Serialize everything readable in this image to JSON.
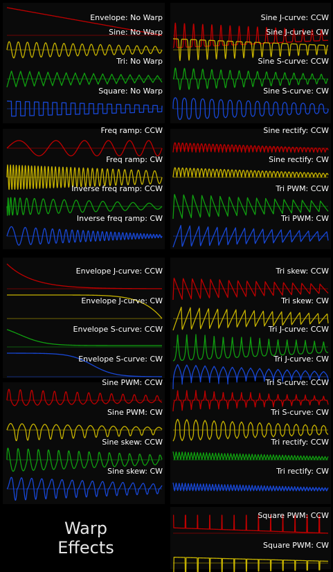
{
  "title": {
    "line1": "Warp",
    "line2": "Effects"
  },
  "colors": {
    "red": "#c00000",
    "yellow": "#c8b400",
    "green": "#10a010",
    "blue": "#1848d8"
  },
  "left_groups": [
    {
      "traces": [
        {
          "label": "Envelope: No Warp",
          "color": "red",
          "shape": "env_linear"
        },
        {
          "label": "Sine: No Warp",
          "color": "yellow",
          "shape": "sine"
        },
        {
          "label": "Tri: No Warp",
          "color": "green",
          "shape": "tri"
        },
        {
          "label": "Square: No Warp",
          "color": "blue",
          "shape": "square"
        }
      ]
    },
    {
      "traces": [
        {
          "label": "Freq ramp: CCW",
          "color": "red",
          "shape": "freq_slow"
        },
        {
          "label": "Freq ramp: CW",
          "color": "yellow",
          "shape": "freq_fast"
        },
        {
          "label": "Inverse freq ramp: CCW",
          "color": "green",
          "shape": "invfreq_ccw"
        },
        {
          "label": "Inverse freq ramp: CW",
          "color": "blue",
          "shape": "invfreq_cw"
        }
      ]
    },
    {
      "traces": [
        {
          "label": "Envelope J-curve: CCW",
          "color": "red",
          "shape": "env_j_ccw"
        },
        {
          "label": "Envelope J-curve: CW",
          "color": "yellow",
          "shape": "env_j_cw"
        },
        {
          "label": "Envelope S-curve: CCW",
          "color": "green",
          "shape": "env_s_ccw"
        },
        {
          "label": "Envelope S-curve: CW",
          "color": "blue",
          "shape": "env_s_cw"
        }
      ]
    },
    {
      "traces": [
        {
          "label": "Sine PWM: CCW",
          "color": "red",
          "shape": "sine_pwm"
        },
        {
          "label": "Sine PWM: CW",
          "color": "yellow",
          "shape": "sine_pwm_cw"
        },
        {
          "label": "Sine skew: CCW",
          "color": "green",
          "shape": "sine_skew_ccw"
        },
        {
          "label": "Sine skew: CW",
          "color": "blue",
          "shape": "sine_skew_cw"
        }
      ]
    }
  ],
  "right_groups": [
    {
      "traces": [
        {
          "label": "Sine J-curve: CCW",
          "color": "red",
          "shape": "sinej_ccw"
        },
        {
          "label": "Sine J-curve: CW",
          "color": "yellow",
          "shape": "sinej_cw"
        },
        {
          "label": "Sine S-curve: CCW",
          "color": "green",
          "shape": "sines_ccw"
        },
        {
          "label": "Sine S-curve: CW",
          "color": "blue",
          "shape": "sines_cw"
        }
      ]
    },
    {
      "traces": [
        {
          "label": "Sine rectify: CCW",
          "color": "red",
          "shape": "rect_ccw"
        },
        {
          "label": "Sine rectify: CW",
          "color": "yellow",
          "shape": "rect_cw"
        },
        {
          "label": "Tri PWM: CCW",
          "color": "green",
          "shape": "tri_pwm_ccw"
        },
        {
          "label": "Tri PWM: CW",
          "color": "blue",
          "shape": "tri_pwm_cw"
        }
      ]
    },
    {
      "traces": [
        {
          "label": "Tri skew: CCW",
          "color": "red",
          "shape": "saw_down"
        },
        {
          "label": "Tri skew: CW",
          "color": "yellow",
          "shape": "saw_up"
        },
        {
          "label": "Tri J-curve: CCW",
          "color": "green",
          "shape": "trij_ccw"
        },
        {
          "label": "Tri J-curve: CW",
          "color": "blue",
          "shape": "trij_cw"
        }
      ]
    },
    {
      "traces": [
        {
          "label": "Tri S-curve: CCW",
          "color": "red",
          "shape": "tris_ccw"
        },
        {
          "label": "Tri S-curve: CW",
          "color": "yellow",
          "shape": "tris_cw"
        },
        {
          "label": "Tri rectify: CCW",
          "color": "green",
          "shape": "trirect_ccw"
        },
        {
          "label": "Tri rectify: CW",
          "color": "blue",
          "shape": "trirect_cw"
        }
      ]
    },
    {
      "traces": [
        {
          "label": "Square PWM: CCW",
          "color": "red",
          "shape": "sq_pwm_ccw"
        },
        {
          "label": "Square PWM: CW",
          "color": "yellow",
          "shape": "sq_pwm_cw"
        }
      ]
    }
  ]
}
